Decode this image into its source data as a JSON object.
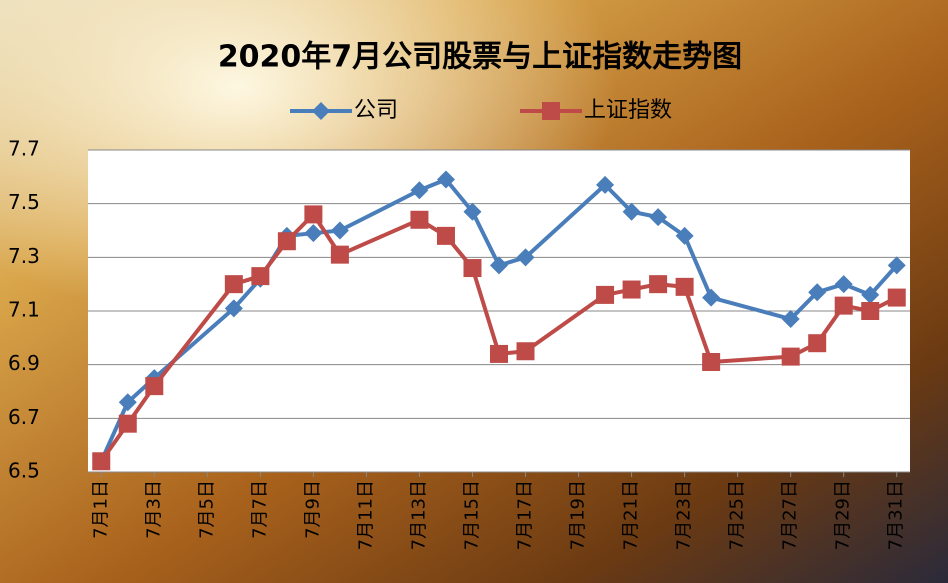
{
  "chart_data": {
    "type": "line",
    "title": "2020年7月公司股票与上证指数走势图",
    "x": [
      1,
      2,
      3,
      6,
      7,
      8,
      9,
      10,
      13,
      14,
      15,
      16,
      17,
      20,
      21,
      22,
      23,
      24,
      27,
      28,
      29,
      30,
      31
    ],
    "xlim": [
      0.5,
      31.5
    ],
    "xticks": [
      {
        "value": 1,
        "label": "7月1日"
      },
      {
        "value": 3,
        "label": "7月3日"
      },
      {
        "value": 5,
        "label": "7月5日"
      },
      {
        "value": 7,
        "label": "7月7日"
      },
      {
        "value": 9,
        "label": "7月9日"
      },
      {
        "value": 11,
        "label": "7月11日"
      },
      {
        "value": 13,
        "label": "7月13日"
      },
      {
        "value": 15,
        "label": "7月15日"
      },
      {
        "value": 17,
        "label": "7月17日"
      },
      {
        "value": 19,
        "label": "7月19日"
      },
      {
        "value": 21,
        "label": "7月21日"
      },
      {
        "value": 23,
        "label": "7月23日"
      },
      {
        "value": 25,
        "label": "7月25日"
      },
      {
        "value": 27,
        "label": "7月27日"
      },
      {
        "value": 29,
        "label": "7月29日"
      },
      {
        "value": 31,
        "label": "7月31日"
      }
    ],
    "ylim": [
      6.5,
      7.7
    ],
    "yticks": [
      6.5,
      6.7,
      6.9,
      7.1,
      7.3,
      7.5,
      7.7
    ],
    "grid": true,
    "legend": "top",
    "series": [
      {
        "name": "公司",
        "color": "#4a7ebb",
        "marker": "diamond",
        "values": [
          6.54,
          6.76,
          6.85,
          7.11,
          7.22,
          7.38,
          7.39,
          7.4,
          7.55,
          7.59,
          7.47,
          7.27,
          7.3,
          7.57,
          7.47,
          7.45,
          7.38,
          7.15,
          7.07,
          7.17,
          7.2,
          7.16,
          7.27
        ]
      },
      {
        "name": "上证指数",
        "color": "#be4b48",
        "marker": "square",
        "values": [
          6.54,
          6.68,
          6.82,
          7.2,
          7.23,
          7.36,
          7.46,
          7.31,
          7.44,
          7.38,
          7.26,
          6.94,
          6.95,
          7.16,
          7.18,
          7.2,
          7.19,
          6.91,
          6.93,
          6.98,
          7.12,
          7.1,
          7.15
        ]
      }
    ]
  }
}
